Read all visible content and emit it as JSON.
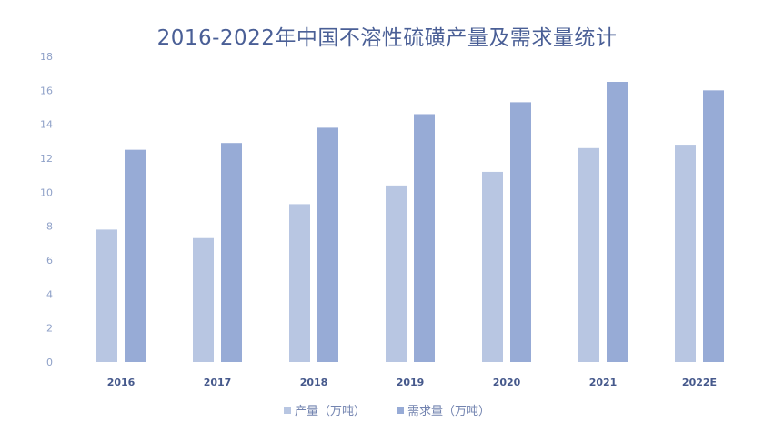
{
  "chart_data": {
    "type": "bar",
    "title": "2016-2022年中国不溶性硫磺产量及需求量统计",
    "categories": [
      "2016",
      "2017",
      "2018",
      "2019",
      "2020",
      "2021",
      "2022E"
    ],
    "series": [
      {
        "name": "产量（万吨）",
        "values": [
          7.8,
          7.3,
          9.3,
          10.4,
          11.2,
          12.6,
          12.8
        ],
        "color": "#b8c6e2"
      },
      {
        "name": "需求量（万吨）",
        "values": [
          12.5,
          12.9,
          13.8,
          14.6,
          15.3,
          16.5,
          16.0
        ],
        "color": "#97abd6"
      }
    ],
    "ylim": [
      0,
      18
    ],
    "yticks": [
      0,
      2,
      4,
      6,
      8,
      10,
      12,
      14,
      16,
      18
    ],
    "xlabel": "",
    "ylabel": "",
    "grid": false,
    "legend_position": "bottom"
  }
}
